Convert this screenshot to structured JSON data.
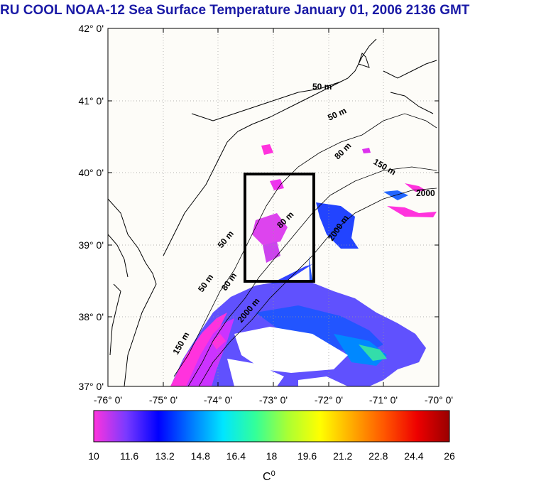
{
  "title": "RU COOL  NOAA-12 Sea Surface Temperature January 01, 2006 2136 GMT",
  "axes": {
    "lat_labels": [
      "42° 0'",
      "41° 0'",
      "40° 0'",
      "39° 0'",
      "38° 0'",
      "37° 0'"
    ],
    "lon_labels": [
      "-76° 0'",
      "-75° 0'",
      "-74° 0'",
      "-73° 0'",
      "-72° 0'",
      "-71° 0'",
      "-70° 0'"
    ],
    "lat_range": [
      37,
      42
    ],
    "lon_range": [
      -76,
      -70
    ]
  },
  "isobaths": [
    "50 m",
    "50 m",
    "50 m",
    "50 m",
    "80 m",
    "80 m",
    "80 m",
    "150 m",
    "150 m",
    "2000 m",
    "2000 m",
    "2000"
  ],
  "study_box": {
    "lat_min": 38.5,
    "lat_max": 40.0,
    "lon_min": -73.5,
    "lon_max": -72.3
  },
  "colorbar": {
    "min": 10,
    "max": 26,
    "tick_labels": [
      "10",
      "11.6",
      "13.2",
      "14.8",
      "16.4",
      "18",
      "19.6",
      "21.2",
      "22.8",
      "24.4",
      "26"
    ],
    "unit": "C",
    "unit_sup": "0",
    "colors": [
      "#ff33dd",
      "#7a3aff",
      "#0000ff",
      "#0077ff",
      "#00e6ff",
      "#33ff99",
      "#aaff33",
      "#ffff00",
      "#ffaa00",
      "#ff5500",
      "#ee0000",
      "#990000"
    ]
  },
  "colors": {
    "title": "#1a1aa6",
    "land": "#fdfcf8",
    "coast": "#000000"
  }
}
